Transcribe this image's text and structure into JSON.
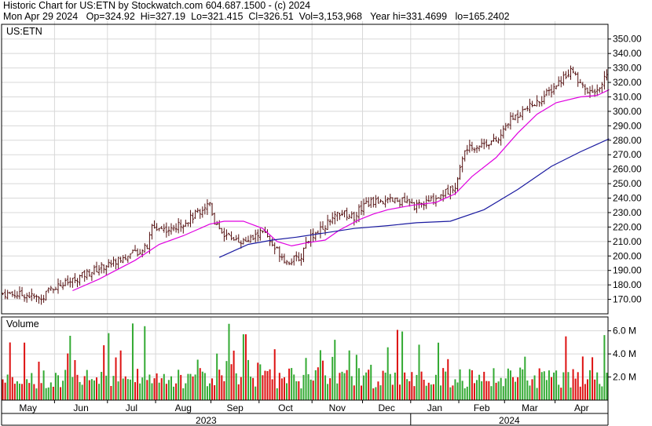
{
  "header": {
    "line1": "Historic Chart for US:ETN by Stockwatch.com 604.687.1500 - (c) 2024",
    "line2": "Mon Apr 29 2024   Op=324.92  Hi=327.19  Lo=321.415  Cl=326.51  Vol=3,153,968   Year hi=331.4699   lo=165.2402"
  },
  "chart_data": {
    "type": "bar",
    "symbol_label": "US:ETN",
    "price_ylim": [
      160,
      358
    ],
    "price_ticks": [
      170,
      180,
      190,
      200,
      210,
      220,
      230,
      240,
      250,
      260,
      270,
      280,
      290,
      300,
      310,
      320,
      330,
      340,
      350
    ],
    "price_tick_labels": [
      "170.00",
      "180.00",
      "190.00",
      "200.00",
      "210.00",
      "220.00",
      "230.00",
      "240.00",
      "250.00",
      "260.00",
      "270.00",
      "280.00",
      "290.00",
      "300.00",
      "310.00",
      "320.00",
      "330.00",
      "340.00",
      "350.00"
    ],
    "volume_label": "Volume",
    "volume_ylim": [
      0,
      7.2
    ],
    "volume_ticks": [
      2,
      4,
      6
    ],
    "volume_tick_labels": [
      "2.0 M",
      "4.0 M",
      "6.0 M"
    ],
    "months": [
      "May",
      "Jun",
      "Jul",
      "Aug",
      "Sep",
      "Oct",
      "Nov",
      "Dec",
      "Jan",
      "Feb",
      "Mar",
      "Apr"
    ],
    "month_starts_day": [
      0,
      22,
      44,
      64,
      87,
      107,
      129,
      150,
      170,
      190,
      209,
      230
    ],
    "years": [
      "2023",
      "2024"
    ],
    "year_split_day": 170,
    "total_days": 252,
    "price_path": [
      [
        0,
        174
      ],
      [
        10,
        173
      ],
      [
        16,
        170
      ],
      [
        20,
        178
      ],
      [
        28,
        182
      ],
      [
        35,
        188
      ],
      [
        42,
        193
      ],
      [
        52,
        200
      ],
      [
        60,
        206
      ],
      [
        62,
        220
      ],
      [
        70,
        218
      ],
      [
        78,
        226
      ],
      [
        86,
        237
      ],
      [
        88,
        224
      ],
      [
        92,
        215
      ],
      [
        100,
        210
      ],
      [
        104,
        212
      ],
      [
        108,
        218
      ],
      [
        112,
        206
      ],
      [
        114,
        204
      ],
      [
        118,
        196
      ],
      [
        124,
        199
      ],
      [
        126,
        211
      ],
      [
        134,
        221
      ],
      [
        140,
        230
      ],
      [
        146,
        227
      ],
      [
        150,
        236
      ],
      [
        156,
        238
      ],
      [
        166,
        238
      ],
      [
        172,
        234
      ],
      [
        180,
        240
      ],
      [
        188,
        248
      ],
      [
        192,
        273
      ],
      [
        200,
        278
      ],
      [
        206,
        280
      ],
      [
        210,
        293
      ],
      [
        216,
        300
      ],
      [
        222,
        306
      ],
      [
        228,
        315
      ],
      [
        236,
        329
      ],
      [
        240,
        318
      ],
      [
        244,
        312
      ],
      [
        248,
        318
      ],
      [
        252,
        326
      ]
    ],
    "ma_fast_path": [
      [
        29,
        176
      ],
      [
        40,
        184
      ],
      [
        55,
        197
      ],
      [
        65,
        208
      ],
      [
        75,
        214
      ],
      [
        86,
        222
      ],
      [
        92,
        224
      ],
      [
        100,
        224
      ],
      [
        108,
        219
      ],
      [
        114,
        210
      ],
      [
        120,
        207
      ],
      [
        126,
        209
      ],
      [
        134,
        211
      ],
      [
        140,
        218
      ],
      [
        148,
        225
      ],
      [
        154,
        229
      ],
      [
        160,
        232
      ],
      [
        170,
        235
      ],
      [
        180,
        237
      ],
      [
        188,
        243
      ],
      [
        195,
        255
      ],
      [
        205,
        268
      ],
      [
        214,
        285
      ],
      [
        222,
        298
      ],
      [
        230,
        306
      ],
      [
        240,
        310
      ],
      [
        247,
        311
      ],
      [
        252,
        315
      ]
    ],
    "ma_slow_path": [
      [
        90,
        199
      ],
      [
        102,
        208
      ],
      [
        112,
        211
      ],
      [
        122,
        213
      ],
      [
        134,
        216
      ],
      [
        146,
        219
      ],
      [
        160,
        221
      ],
      [
        172,
        223
      ],
      [
        186,
        224
      ],
      [
        200,
        232
      ],
      [
        214,
        246
      ],
      [
        228,
        262
      ],
      [
        240,
        272
      ],
      [
        252,
        281
      ]
    ],
    "colors": {
      "up_volume": "#33aa33",
      "down_volume": "#dd1111",
      "price_bar": "#551111",
      "ma_fast": "#e000e0",
      "ma_slow": "#1a1aa0",
      "grid": "#d8d8d8",
      "axis": "#000000"
    }
  }
}
